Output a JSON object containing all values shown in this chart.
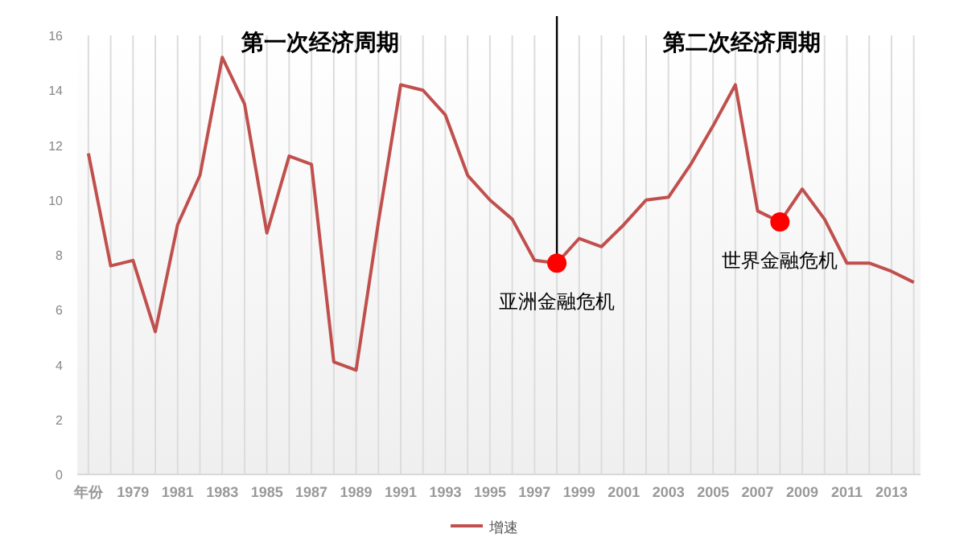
{
  "chart_data": {
    "type": "line",
    "x": [
      1977,
      1978,
      1979,
      1980,
      1981,
      1982,
      1983,
      1984,
      1985,
      1986,
      1987,
      1988,
      1989,
      1990,
      1991,
      1992,
      1993,
      1994,
      1995,
      1996,
      1997,
      1998,
      1999,
      2000,
      2001,
      2002,
      2003,
      2004,
      2005,
      2006,
      2007,
      2008,
      2009,
      2010,
      2011,
      2012,
      2013,
      2014
    ],
    "series": [
      {
        "name": "增速",
        "color": "#c0504d",
        "values": [
          11.7,
          7.6,
          7.8,
          5.2,
          9.1,
          10.9,
          15.2,
          13.5,
          8.8,
          11.6,
          11.3,
          4.1,
          3.8,
          9.2,
          14.2,
          14.0,
          13.1,
          10.9,
          10.0,
          9.3,
          7.8,
          7.7,
          8.6,
          8.3,
          9.1,
          10.0,
          10.1,
          11.3,
          12.7,
          14.2,
          9.6,
          9.2,
          10.4,
          9.3,
          7.7,
          7.7,
          7.4,
          7.0
        ]
      },
      {
        "type": "scatter",
        "color": "#ff0000",
        "marker": "circle",
        "x": [
          1998,
          2008
        ],
        "values": [
          7.7,
          9.2
        ]
      }
    ],
    "xlim": [
      1976.5,
      2014.3
    ],
    "xticks": [
      {
        "value": 1977,
        "label": "年份"
      },
      {
        "value": 1978,
        "label": null
      },
      1979,
      {
        "value": 1980,
        "label": null
      },
      1981,
      {
        "value": 1982,
        "label": null
      },
      1983,
      {
        "value": 1984,
        "label": null
      },
      1985,
      {
        "value": 1986,
        "label": null
      },
      1987,
      {
        "value": 1988,
        "label": null
      },
      1989,
      {
        "value": 1990,
        "label": null
      },
      1991,
      {
        "value": 1992,
        "label": null
      },
      1993,
      {
        "value": 1994,
        "label": null
      },
      1995,
      {
        "value": 1996,
        "label": null
      },
      1997,
      {
        "value": 1998,
        "label": null
      },
      1999,
      {
        "value": 2000,
        "label": null
      },
      2001,
      {
        "value": 2002,
        "label": null
      },
      2003,
      {
        "value": 2004,
        "label": null
      },
      2005,
      {
        "value": 2006,
        "label": null
      },
      2007,
      {
        "value": 2008,
        "label": null
      },
      2009,
      {
        "value": 2010,
        "label": null
      },
      2011,
      {
        "value": 2012,
        "label": null
      },
      2013,
      {
        "value": 2014,
        "label": null
      }
    ],
    "ylim": [
      0,
      16
    ],
    "yticks": [
      0,
      2,
      4,
      6,
      8,
      10,
      12,
      14,
      16
    ],
    "grid": "x",
    "legend": "bottom",
    "marker": "none",
    "line_style": "solid",
    "ref_lines": [
      {
        "axis": "x",
        "value": 1998,
        "color": "#000000"
      }
    ],
    "annotations": [
      "第一次经济周期",
      "第二次经济周期",
      {
        "text": "亚洲金融危机",
        "x": 1998,
        "y": 7.7
      },
      {
        "text": "世界金融危机",
        "x": 2008,
        "y": 9.2
      }
    ]
  }
}
